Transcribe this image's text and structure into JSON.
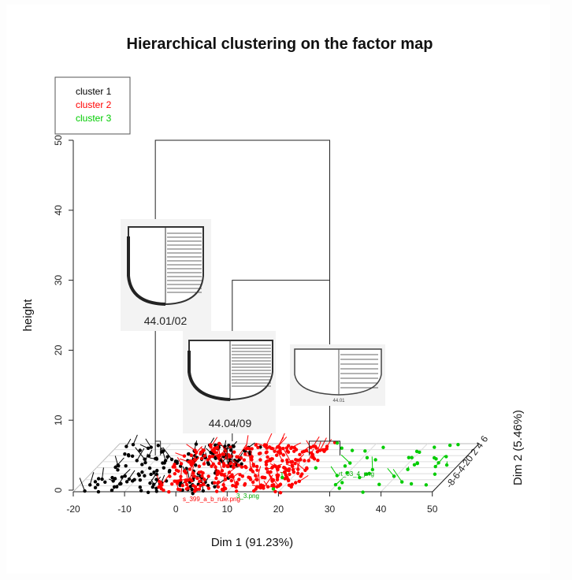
{
  "chart_data": {
    "type": "scatter",
    "title": "Hierarchical clustering on the factor map",
    "xlabel": "Dim 1 (91.23%)",
    "ylabel": "height",
    "zlabel": "Dim 2 (5.46%)",
    "x_ticks": [
      "-20",
      "-10",
      "0",
      "10",
      "20",
      "30",
      "40",
      "50"
    ],
    "y_ticks": [
      "0",
      "10",
      "20",
      "30",
      "40",
      "50"
    ],
    "z_ticks": [
      "-8",
      "-6",
      "-4",
      "-2",
      "0",
      "2",
      "4",
      "6"
    ],
    "xlim": [
      -20,
      50
    ],
    "ylim": [
      0,
      50
    ],
    "legend": {
      "placement": "top-left",
      "items": [
        {
          "label": "cluster 1",
          "color": "#000000"
        },
        {
          "label": "cluster 2",
          "color": "#ff0000"
        },
        {
          "label": "cluster 3",
          "color": "#00cc00"
        }
      ]
    },
    "series": [
      {
        "color": "#000000",
        "dim1_range": [
          -18,
          8
        ],
        "points": 170
      },
      {
        "color": "#ff0000",
        "dim1_range": [
          -5,
          22
        ],
        "points": 320
      },
      {
        "color": "#00cc00",
        "dim1_range": [
          18,
          48
        ],
        "points": 45
      }
    ],
    "dendrogram": [
      {
        "x1": -4,
        "x2": 30,
        "h": 50
      },
      {
        "x1": 11,
        "x2": 30,
        "h": 30
      },
      {
        "x1": -4,
        "x2": -3,
        "h": 7
      },
      {
        "x1": 10,
        "x2": 11,
        "h": 6
      },
      {
        "x1": 26,
        "x2": 32,
        "h": 7
      }
    ],
    "thumbnails": [
      {
        "caption": "44.01/02"
      },
      {
        "caption": "44.04/09"
      },
      {
        "caption": "44.01"
      }
    ],
    "annotations": [
      "s_399_a_b_rule.png",
      "3_3.png",
      "rt_03_4_png"
    ]
  }
}
